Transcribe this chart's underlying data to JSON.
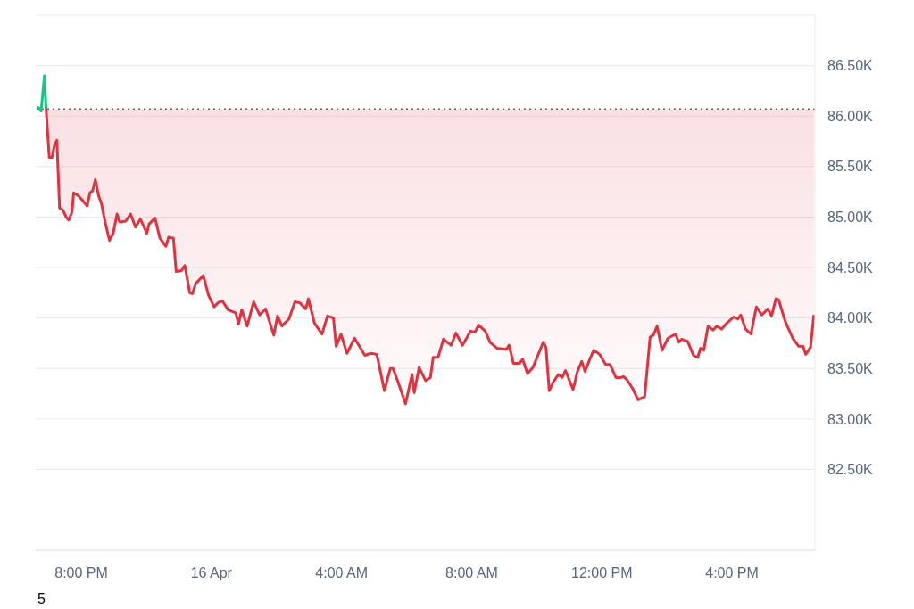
{
  "chart_data": {
    "type": "line",
    "x": [
      "--04-15T18:38",
      "--04-15T18:42",
      "--04-15T18:46",
      "--04-15T18:52",
      "--04-15T18:55",
      "--04-15T19:01",
      "--04-15T19:06",
      "--04-15T19:11",
      "--04-15T19:15",
      "--04-15T19:20",
      "--04-15T19:26",
      "--04-15T19:32",
      "--04-15T19:37",
      "--04-15T19:43",
      "--04-15T19:46",
      "--04-15T19:55",
      "--04-15T20:03",
      "--04-15T20:11",
      "--04-15T20:16",
      "--04-15T20:21",
      "--04-15T20:26",
      "--04-15T20:32",
      "--04-15T20:37",
      "--04-15T20:44",
      "--04-15T20:52",
      "--04-15T20:59",
      "--04-15T21:06",
      "--04-15T21:11",
      "--04-15T21:22",
      "--04-15T21:31",
      "--04-15T21:40",
      "--04-15T21:49",
      "--04-15T22:01",
      "--04-15T22:05",
      "--04-15T22:16",
      "--04-15T22:25",
      "--04-15T22:36",
      "--04-15T22:41",
      "--04-15T22:50",
      "--04-15T22:55",
      "--04-15T23:05",
      "--04-15T23:11",
      "--04-15T23:20",
      "--04-15T23:25",
      "--04-15T23:31",
      "--04-15T23:45",
      "--04-15T23:55",
      "--04-16T00:05",
      "--04-16T00:12",
      "--04-16T00:20",
      "--04-16T00:31",
      "--04-16T00:45",
      "--04-16T00:50",
      "--04-16T00:56",
      "--04-16T01:06",
      "--04-16T01:18",
      "--04-16T01:29",
      "--04-16T01:40",
      "--04-16T01:45",
      "--04-16T01:55",
      "--04-16T02:02",
      "--04-16T02:10",
      "--04-16T02:23",
      "--04-16T02:34",
      "--04-16T02:43",
      "--04-16T02:54",
      "--04-16T02:59",
      "--04-16T03:10",
      "--04-16T03:24",
      "--04-16T03:34",
      "--04-16T03:45",
      "--04-16T03:50",
      "--04-16T03:59",
      "--04-16T04:10",
      "--04-16T04:24",
      "--04-16T04:43",
      "--04-16T04:54",
      "--04-16T05:05",
      "--04-16T05:19",
      "--04-16T05:30",
      "--04-16T05:35",
      "--04-16T05:44",
      "--04-16T05:58",
      "--04-16T06:10",
      "--04-16T06:14",
      "--04-16T06:23",
      "--04-16T06:35",
      "--04-16T06:44",
      "--04-16T06:49",
      "--04-16T06:58",
      "--04-16T07:08",
      "--04-16T07:22",
      "--04-16T07:31",
      "--04-16T07:43",
      "--04-16T07:58",
      "--04-16T08:06",
      "--04-16T08:13",
      "--04-16T08:25",
      "--04-16T08:34",
      "--04-16T08:47",
      "--04-16T09:04",
      "--04-16T09:09",
      "--04-16T09:17",
      "--04-16T09:28",
      "--04-16T09:34",
      "--04-16T09:43",
      "--04-16T09:53",
      "--04-16T10:12",
      "--04-16T10:17",
      "--04-16T10:23",
      "--04-16T10:31",
      "--04-16T10:40",
      "--04-16T10:47",
      "--04-16T10:53",
      "--04-16T11:07",
      "--04-16T11:15",
      "--04-16T11:23",
      "--04-16T11:29",
      "--04-16T11:37",
      "--04-16T11:45",
      "--04-16T11:56",
      "--04-16T12:07",
      "--04-16T12:15",
      "--04-16T12:26",
      "--04-16T12:35",
      "--04-16T12:40",
      "--04-16T12:46",
      "--04-16T12:56",
      "--04-16T13:07",
      "--04-16T13:19",
      "--04-16T13:29",
      "--04-16T13:35",
      "--04-16T13:42",
      "--04-16T13:51",
      "--04-16T14:02",
      "--04-16T14:16",
      "--04-16T14:22",
      "--04-16T14:27",
      "--04-16T14:38",
      "--04-16T14:49",
      "--04-16T14:57",
      "--04-16T15:02",
      "--04-16T15:08",
      "--04-16T15:16",
      "--04-16T15:25",
      "--04-16T15:32",
      "--04-16T15:41",
      "--04-16T15:49",
      "--04-16T16:03",
      "--04-16T16:11",
      "--04-16T16:16",
      "--04-16T16:25",
      "--04-16T16:35",
      "--04-16T16:45",
      "--04-16T16:55",
      "--04-16T17:06",
      "--04-16T17:13",
      "--04-16T17:21",
      "--04-16T17:26",
      "--04-16T17:38",
      "--04-16T17:52",
      "--04-16T18:03",
      "--04-16T18:11",
      "--04-16T18:16",
      "--04-16T18:25",
      "--04-16T18:31"
    ],
    "series": [
      {
        "color": "#e0323f",
        "values": [
          null,
          null,
          null,
          null,
          86080,
          85590,
          85590,
          85720,
          85760,
          85090,
          85070,
          85000,
          84970,
          85050,
          85240,
          85210,
          85160,
          85110,
          85240,
          85260,
          85370,
          85210,
          85140,
          84950,
          84770,
          84840,
          85030,
          84950,
          84960,
          85030,
          84900,
          84980,
          84840,
          84930,
          84990,
          84790,
          84710,
          84800,
          84790,
          84460,
          84470,
          84520,
          84250,
          84240,
          84340,
          84420,
          84220,
          84110,
          84150,
          84170,
          84080,
          84050,
          83940,
          84080,
          83920,
          84160,
          84030,
          84090,
          84000,
          83830,
          84020,
          83920,
          83990,
          84160,
          84150,
          84090,
          84190,
          83950,
          83840,
          84020,
          84000,
          83720,
          83840,
          83650,
          83800,
          83630,
          83650,
          83640,
          83280,
          83500,
          83500,
          83370,
          83150,
          83440,
          83260,
          83510,
          83380,
          83410,
          83610,
          83610,
          83790,
          83730,
          83850,
          83730,
          83870,
          83860,
          83930,
          83870,
          83760,
          83700,
          83690,
          83730,
          83550,
          83550,
          83590,
          83450,
          83510,
          83760,
          83710,
          83280,
          83370,
          83440,
          83410,
          83480,
          83290,
          83470,
          83570,
          83470,
          83580,
          83680,
          83640,
          83540,
          83540,
          83410,
          83410,
          83420,
          83390,
          83310,
          83190,
          83220,
          83810,
          83830,
          83920,
          83680,
          83800,
          83840,
          83760,
          83790,
          83770,
          83630,
          83610,
          83700,
          83680,
          83920,
          83880,
          83920,
          83890,
          83940,
          84010,
          83990,
          84030,
          83890,
          83840,
          84110,
          84030,
          84090,
          84020,
          84190,
          84180,
          83970,
          83800,
          83720,
          83720,
          83640,
          83710,
          84030
        ],
        "lower": [
          null,
          null,
          null,
          null,
          86080,
          85590,
          85590,
          85720,
          85760,
          85090,
          85070,
          85000,
          84970,
          85050,
          85240,
          85210,
          85160,
          85110,
          85240,
          85260,
          85370,
          85210,
          85140,
          84950,
          84770,
          84840,
          85030,
          84950,
          84960,
          85030,
          84900,
          84980,
          84840,
          84930,
          84990,
          84790,
          84710,
          84800,
          84790,
          84460,
          84470,
          84520,
          84250,
          84240,
          84340,
          84420,
          84220,
          84110,
          84150,
          84170,
          84080,
          84050,
          83940,
          84080,
          83920,
          84160,
          84030,
          84090,
          84000,
          83830,
          84020,
          83920,
          83990,
          84160,
          84150,
          84090,
          84190,
          83950,
          83840,
          84020,
          84000,
          83720,
          83840,
          83650,
          83800,
          83630,
          83650,
          83640,
          83280,
          83500,
          83500,
          83370,
          83150,
          83440,
          83260,
          83510,
          83380,
          83410,
          83610,
          83610,
          83790,
          83730,
          83850,
          83730,
          83870,
          83860,
          83930,
          83870,
          83760,
          83700,
          83690,
          83730,
          83550,
          83550,
          83590,
          83450,
          83510,
          83760,
          83710,
          83280,
          83370,
          83440,
          83410,
          83480,
          83290,
          83470,
          83570,
          83470,
          83580,
          83680,
          83640,
          83540,
          83540,
          83410,
          83410,
          83420,
          83390,
          83310,
          83190,
          83220,
          83810,
          83830,
          83920,
          83680,
          83800,
          83840,
          83760,
          83790,
          83770,
          83630,
          83610,
          83700,
          83680,
          83920,
          83880,
          83920,
          83890,
          83940,
          84010,
          83990,
          84030,
          83890,
          83840,
          84110,
          84030,
          84090,
          84020,
          84190,
          84180,
          83970,
          83800,
          83720,
          83720,
          83640,
          83710,
          84030
        ],
        "upper": [
          null,
          null,
          null,
          null,
          86070,
          86070,
          86070,
          86070,
          86070,
          86070,
          86070,
          86070,
          86070,
          86070,
          86070,
          86070,
          86070,
          86070,
          86070,
          86070,
          86070,
          86070,
          86070,
          86070,
          86070,
          86070,
          86070,
          86070,
          86070,
          86070,
          86070,
          86070,
          86070,
          86070,
          86070,
          86070,
          86070,
          86070,
          86070,
          86070,
          86070,
          86070,
          86070,
          86070,
          86070,
          86070,
          86070,
          86070,
          86070,
          86070,
          86070,
          86070,
          86070,
          86070,
          86070,
          86070,
          86070,
          86070,
          86070,
          86070,
          86070,
          86070,
          86070,
          86070,
          86070,
          86070,
          86070,
          86070,
          86070,
          86070,
          86070,
          86070,
          86070,
          86070,
          86070,
          86070,
          86070,
          86070,
          86070,
          86070,
          86070,
          86070,
          86070,
          86070,
          86070,
          86070,
          86070,
          86070,
          86070,
          86070,
          86070,
          86070,
          86070,
          86070,
          86070,
          86070,
          86070,
          86070,
          86070,
          86070,
          86070,
          86070,
          86070,
          86070,
          86070,
          86070,
          86070,
          86070,
          86070,
          86070,
          86070,
          86070,
          86070,
          86070,
          86070,
          86070,
          86070,
          86070,
          86070,
          86070,
          86070,
          86070,
          86070,
          86070,
          86070,
          86070,
          86070,
          86070,
          86070,
          86070,
          86070,
          86070,
          86070,
          86070,
          86070,
          86070,
          86070,
          86070,
          86070,
          86070,
          86070,
          86070,
          86070,
          86070,
          86070,
          86070,
          86070,
          86070,
          86070,
          86070,
          86070,
          86070,
          86070,
          86070,
          86070,
          86070,
          86070,
          86070,
          86070,
          86070,
          86070,
          86070,
          86070,
          86070,
          86070,
          86070
        ]
      },
      {
        "color": "#16c784",
        "values": [
          86090,
          86080,
          86050,
          86400,
          86080,
          null,
          null,
          null,
          null,
          null,
          null,
          null,
          null,
          null,
          null,
          null,
          null,
          null,
          null,
          null,
          null,
          null,
          null,
          null,
          null,
          null,
          null,
          null,
          null,
          null,
          null,
          null,
          null,
          null,
          null,
          null,
          null,
          null,
          null,
          null,
          null,
          null,
          null,
          null,
          null,
          null,
          null,
          null,
          null,
          null,
          null,
          null,
          null,
          null,
          null,
          null,
          null,
          null,
          null,
          null,
          null,
          null,
          null,
          null,
          null,
          null,
          null,
          null,
          null,
          null,
          null,
          null,
          null,
          null,
          null,
          null,
          null,
          null,
          null,
          null,
          null,
          null,
          null,
          null,
          null,
          null,
          null,
          null,
          null,
          null,
          null,
          null,
          null,
          null,
          null,
          null,
          null,
          null,
          null,
          null,
          null,
          null,
          null,
          null,
          null,
          null,
          null,
          null,
          null,
          null,
          null,
          null,
          null,
          null,
          null,
          null,
          null,
          null,
          null,
          null,
          null,
          null,
          null,
          null,
          null,
          null,
          null,
          null,
          null,
          null,
          null,
          null,
          null,
          null,
          null,
          null,
          null,
          null,
          null,
          null,
          null,
          null,
          null,
          null,
          null,
          null,
          null,
          null,
          null,
          null,
          null,
          null,
          null,
          null,
          null,
          null,
          null,
          null,
          null,
          null,
          null,
          null,
          null,
          null,
          null,
          null
        ]
      }
    ],
    "xlim": [
      "--04-15T18:36",
      "--04-16T18:33"
    ],
    "xticks": [
      {
        "value": "--04-15T20:00",
        "label": "8:00 PM"
      },
      {
        "value": "--04-16T00:00",
        "label": "16 Apr"
      },
      {
        "value": "--04-16T04:00",
        "label": "4:00 AM"
      },
      {
        "value": "--04-16T08:00",
        "label": "8:00 AM"
      },
      {
        "value": "--04-16T12:00",
        "label": "12:00 PM"
      },
      {
        "value": "--04-16T16:00",
        "label": "4:00 PM"
      }
    ],
    "ylim": [
      81700,
      87000
    ],
    "yticks": [
      {
        "value": 82500,
        "label": "82.50K"
      },
      {
        "value": 83000,
        "label": "83.00K"
      },
      {
        "value": 83500,
        "label": "83.50K"
      },
      {
        "value": 84000,
        "label": "84.00K"
      },
      {
        "value": 84500,
        "label": "84.50K"
      },
      {
        "value": 85000,
        "label": "85.00K"
      },
      {
        "value": 85500,
        "label": "85.50K"
      },
      {
        "value": 86000,
        "label": "86.00K"
      },
      {
        "value": 86500,
        "label": "86.50K"
      }
    ],
    "ref_lines": [
      {
        "axis": "y",
        "value": 86070,
        "line_style": "dotted",
        "color": "#666666"
      }
    ],
    "grid": "y",
    "line_style": "solid",
    "annotations": [
      "5"
    ]
  }
}
